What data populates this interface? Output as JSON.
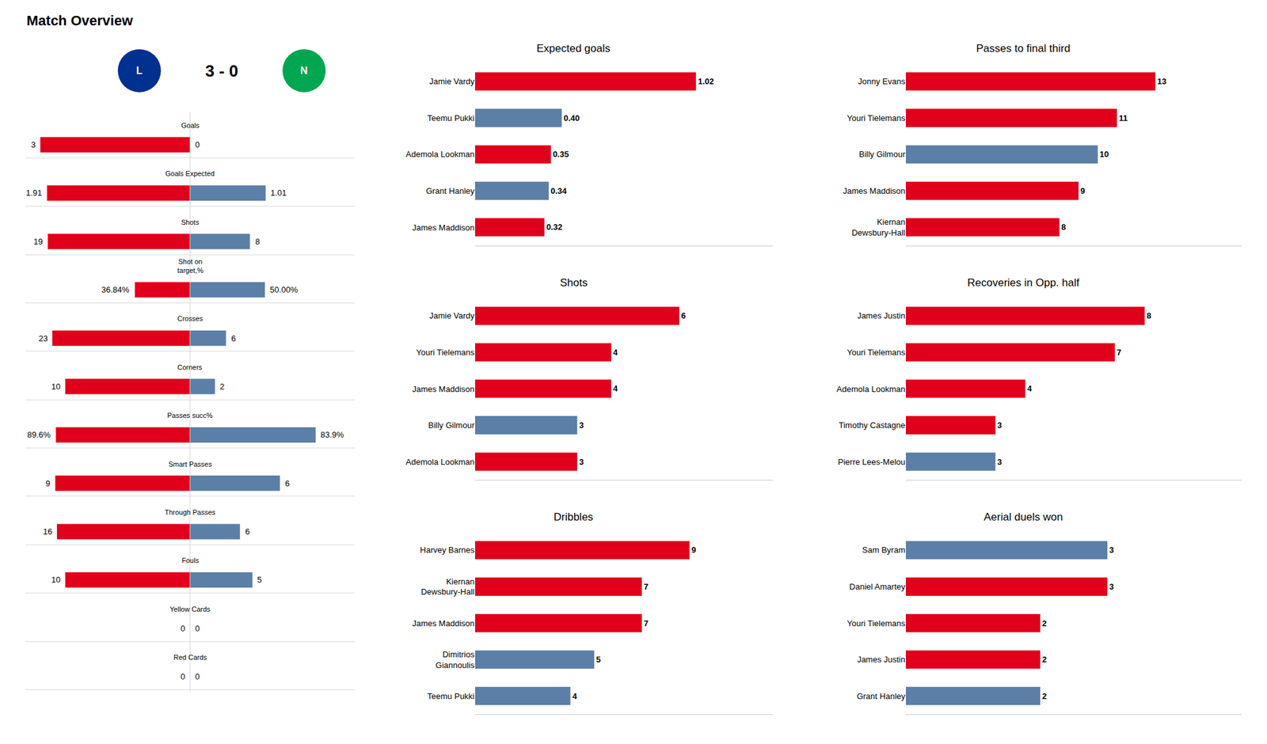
{
  "chart_data": [
    {
      "type": "diverging_bar",
      "title": "Match Overview",
      "score": "3 - 0",
      "badges": [
        {
          "text": "L",
          "color": "#003090"
        },
        {
          "text": "N",
          "color": "#00A650"
        }
      ],
      "orientation": "horizontal",
      "data_labels": true,
      "tick_labels": false,
      "rows": [
        {
          "label": "Goals",
          "values": [
            3,
            0
          ],
          "value_labels": [
            "3",
            "0"
          ],
          "colors": [
            "#E0001B",
            "#5B7FA6"
          ],
          "xlim": [
            0,
            3.3
          ]
        },
        {
          "label": "Goals Expected",
          "values": [
            1.91,
            1.01
          ],
          "value_labels": [
            "1.91",
            "1.01"
          ],
          "colors": [
            "#E0001B",
            "#5B7FA6"
          ],
          "xlim": [
            0,
            2.2
          ]
        },
        {
          "label": "Shots",
          "values": [
            19,
            8
          ],
          "value_labels": [
            "19",
            "8"
          ],
          "colors": [
            "#E0001B",
            "#5B7FA6"
          ],
          "xlim": [
            0,
            22
          ]
        },
        {
          "label": "Shot on\ntarget,%",
          "values": [
            36.84,
            50.0
          ],
          "value_labels": [
            "36.84%",
            "50.00%"
          ],
          "colors": [
            "#E0001B",
            "#5B7FA6"
          ],
          "xlim": [
            0,
            110
          ]
        },
        {
          "label": "Crosses",
          "values": [
            23,
            6
          ],
          "value_labels": [
            "23",
            "6"
          ],
          "colors": [
            "#E0001B",
            "#5B7FA6"
          ],
          "xlim": [
            0,
            27.5
          ]
        },
        {
          "label": "Corners",
          "values": [
            10,
            2
          ],
          "value_labels": [
            "10",
            "2"
          ],
          "colors": [
            "#E0001B",
            "#5B7FA6"
          ],
          "xlim": [
            0,
            13.2
          ]
        },
        {
          "label": "Passes succ%",
          "values": [
            89.6,
            83.9
          ],
          "value_labels": [
            "89.6%",
            "83.9%"
          ],
          "colors": [
            "#E0001B",
            "#5B7FA6"
          ],
          "xlim": [
            0,
            110
          ]
        },
        {
          "label": "Smart Passes",
          "values": [
            9,
            6
          ],
          "value_labels": [
            "9",
            "6"
          ],
          "colors": [
            "#E0001B",
            "#5B7FA6"
          ],
          "xlim": [
            0,
            11
          ]
        },
        {
          "label": "Through Passes",
          "values": [
            16,
            6
          ],
          "value_labels": [
            "16",
            "6"
          ],
          "colors": [
            "#E0001B",
            "#5B7FA6"
          ],
          "xlim": [
            0,
            19.8
          ]
        },
        {
          "label": "Fouls",
          "values": [
            10,
            5
          ],
          "value_labels": [
            "10",
            "5"
          ],
          "colors": [
            "#E0001B",
            "#5B7FA6"
          ],
          "xlim": [
            0,
            13.2
          ]
        },
        {
          "label": "Yellow Cards",
          "values": [
            0,
            0
          ],
          "value_labels": [
            "0",
            "0"
          ],
          "colors": [
            "#E0001B",
            "#5B7FA6"
          ],
          "xlim": [
            0,
            1.1
          ]
        },
        {
          "label": "Red Cards",
          "values": [
            0,
            0
          ],
          "value_labels": [
            "0",
            "0"
          ],
          "colors": [
            "#E0001B",
            "#5B7FA6"
          ],
          "xlim": [
            0,
            1.1
          ]
        }
      ]
    },
    {
      "type": "bar",
      "orientation": "horizontal",
      "title": "Expected goals",
      "categories": [
        "Jamie Vardy",
        "Teemu Pukki",
        "Ademola Lookman",
        "Grant Hanley",
        "James Maddison"
      ],
      "values": [
        1.02,
        0.4,
        0.35,
        0.34,
        0.32
      ],
      "value_labels": [
        "1.02",
        "0.40",
        "0.35",
        "0.34",
        "0.32"
      ],
      "colors": [
        "#E0001B",
        "#5B7FA6",
        "#E0001B",
        "#5B7FA6",
        "#E0001B"
      ],
      "xlim": [
        0,
        1.375
      ],
      "data_labels": true,
      "tick_labels": "y"
    },
    {
      "type": "bar",
      "orientation": "horizontal",
      "title": "Shots",
      "categories": [
        "Jamie Vardy",
        "Youri Tielemans",
        "James Maddison",
        "Billy Gilmour",
        "Ademola Lookman"
      ],
      "values": [
        6,
        4,
        4,
        3,
        3
      ],
      "value_labels": [
        "6",
        "4",
        "4",
        "3",
        "3"
      ],
      "colors": [
        "#E0001B",
        "#E0001B",
        "#E0001B",
        "#5B7FA6",
        "#E0001B"
      ],
      "xlim": [
        0,
        8.75
      ],
      "data_labels": true,
      "tick_labels": "y"
    },
    {
      "type": "bar",
      "orientation": "horizontal",
      "title": "Dribbles",
      "categories": [
        "Harvey Barnes",
        "Kiernan\nDewsbury-Hall",
        "James Maddison",
        "Dimitrios\nGiannoulis",
        "Teemu Pukki"
      ],
      "values": [
        9,
        7,
        7,
        5,
        4
      ],
      "value_labels": [
        "9",
        "7",
        "7",
        "5",
        "4"
      ],
      "colors": [
        "#E0001B",
        "#E0001B",
        "#E0001B",
        "#5B7FA6",
        "#5B7FA6"
      ],
      "xlim": [
        0,
        12.5
      ],
      "data_labels": true,
      "tick_labels": "y"
    },
    {
      "type": "bar",
      "orientation": "horizontal",
      "title": "Passes to final third",
      "categories": [
        "Jonny Evans",
        "Youri Tielemans",
        "Billy Gilmour",
        "James Maddison",
        "Kiernan\nDewsbury-Hall"
      ],
      "values": [
        13,
        11,
        10,
        9,
        8
      ],
      "value_labels": [
        "13",
        "11",
        "10",
        "9",
        "8"
      ],
      "colors": [
        "#E0001B",
        "#E0001B",
        "#5B7FA6",
        "#E0001B",
        "#E0001B"
      ],
      "xlim": [
        0,
        17.5
      ],
      "data_labels": true,
      "tick_labels": "y"
    },
    {
      "type": "bar",
      "orientation": "horizontal",
      "title": "Recoveries in Opp. half",
      "categories": [
        "James Justin",
        "Youri Tielemans",
        "Ademola Lookman",
        "Timothy Castagne",
        "Pierre Lees-Melou"
      ],
      "values": [
        8,
        7,
        4,
        3,
        3
      ],
      "value_labels": [
        "8",
        "7",
        "4",
        "3",
        "3"
      ],
      "colors": [
        "#E0001B",
        "#E0001B",
        "#E0001B",
        "#E0001B",
        "#5B7FA6"
      ],
      "xlim": [
        0,
        11.25
      ],
      "data_labels": true,
      "tick_labels": "y"
    },
    {
      "type": "bar",
      "orientation": "horizontal",
      "title": "Aerial duels won",
      "categories": [
        "Sam Byram",
        "Daniel Amartey",
        "Youri Tielemans",
        "James Justin",
        "Grant Hanley"
      ],
      "values": [
        3,
        3,
        2,
        2,
        2
      ],
      "value_labels": [
        "3",
        "3",
        "2",
        "2",
        "2"
      ],
      "colors": [
        "#5B7FA6",
        "#E0001B",
        "#E0001B",
        "#E0001B",
        "#5B7FA6"
      ],
      "xlim": [
        0,
        5
      ],
      "data_labels": true,
      "tick_labels": "y"
    }
  ]
}
